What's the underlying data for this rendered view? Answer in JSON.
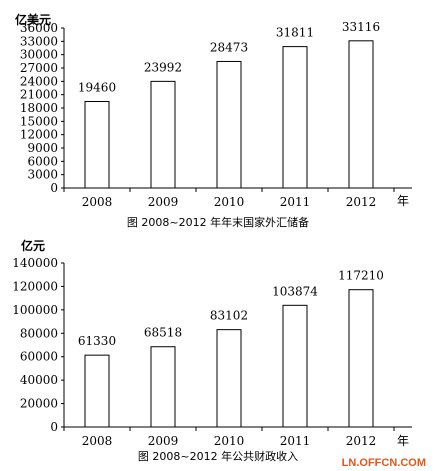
{
  "chart_data": [
    {
      "type": "bar",
      "title": "图 2008~2012 年年末国家外汇储备",
      "ylabel": "亿美元",
      "xlabel": "年",
      "categories": [
        "2008",
        "2009",
        "2010",
        "2011",
        "2012"
      ],
      "values": [
        19460,
        23992,
        28473,
        31811,
        33116
      ],
      "ylim": [
        0,
        36000
      ],
      "yticks": [
        0,
        3000,
        6000,
        9000,
        12000,
        15000,
        18000,
        21000,
        24000,
        27000,
        30000,
        33000,
        36000
      ],
      "grid": false,
      "bar_color": "#ffffff",
      "bar_stroke": "#000000"
    },
    {
      "type": "bar",
      "title": "图 2008~2012 年公共财政收入",
      "ylabel": "亿元",
      "xlabel": "年",
      "categories": [
        "2008",
        "2009",
        "2010",
        "2011",
        "2012"
      ],
      "values": [
        61330,
        68518,
        83102,
        103874,
        117210
      ],
      "ylim": [
        0,
        140000
      ],
      "yticks": [
        0,
        20000,
        40000,
        60000,
        80000,
        100000,
        120000,
        140000
      ],
      "grid": false,
      "bar_color": "#ffffff",
      "bar_stroke": "#000000"
    }
  ],
  "watermark": "LN.OFFCN.COM"
}
